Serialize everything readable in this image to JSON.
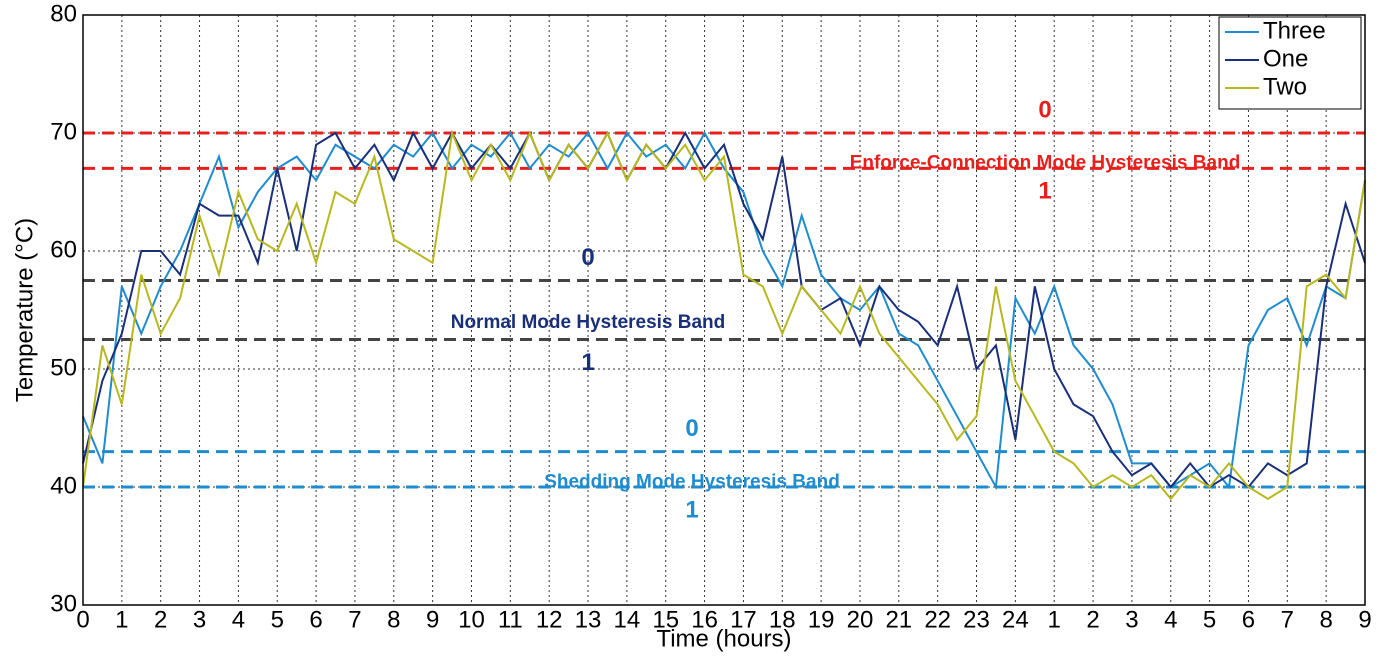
{
  "chart_data": {
    "type": "line",
    "xlabel": "Time (hours)",
    "ylabel": "Temperature (°C)",
    "x": [
      0,
      0.5,
      1,
      1.5,
      2,
      2.5,
      3,
      3.5,
      4,
      4.5,
      5,
      5.5,
      6,
      6.5,
      7,
      7.5,
      8,
      8.5,
      9,
      9.5,
      10,
      10.5,
      11,
      11.5,
      12,
      12.5,
      13,
      13.5,
      14,
      14.5,
      15,
      15.5,
      16,
      16.5,
      17,
      17.5,
      18,
      18.5,
      19,
      19.5,
      20,
      20.5,
      21,
      21.5,
      22,
      22.5,
      23,
      23.5,
      24,
      24.5,
      25,
      25.5,
      26,
      26.5,
      27,
      27.5,
      28,
      28.5,
      29,
      29.5,
      30,
      30.5,
      31,
      31.5,
      32,
      32.5,
      33
    ],
    "series": [
      {
        "name": "Three",
        "color": "#1e8ccf",
        "values": [
          46,
          42,
          57,
          53,
          57,
          60,
          64,
          68,
          62,
          65,
          67,
          68,
          66,
          69,
          68,
          67,
          69,
          68,
          70,
          67,
          69,
          68,
          70,
          67,
          69,
          68,
          70,
          67,
          70,
          68,
          69,
          67,
          70,
          67,
          65,
          60,
          57,
          63,
          58,
          56,
          55,
          57,
          53,
          52,
          49,
          46,
          43,
          40,
          56,
          53,
          57,
          52,
          50,
          47,
          42,
          42,
          40,
          41,
          42,
          40,
          52,
          55,
          56,
          52,
          57,
          56,
          66
        ]
      },
      {
        "name": "One",
        "color": "#1a2f7a",
        "values": [
          42,
          49,
          53,
          60,
          60,
          58,
          64,
          63,
          63,
          59,
          67,
          60,
          69,
          70,
          67,
          69,
          66,
          70,
          67,
          70,
          67,
          69,
          67,
          70,
          66,
          69,
          67,
          70,
          66,
          69,
          67,
          70,
          67,
          69,
          64,
          61,
          68,
          57,
          55,
          56,
          52,
          57,
          55,
          54,
          52,
          57,
          50,
          52,
          44,
          57,
          50,
          47,
          46,
          43,
          41,
          42,
          40,
          42,
          40,
          41,
          40,
          42,
          41,
          42,
          57,
          64,
          59
        ]
      },
      {
        "name": "Two",
        "color": "#b8b81e",
        "values": [
          40,
          52,
          47,
          58,
          53,
          56,
          63,
          58,
          65,
          61,
          60,
          64,
          59,
          65,
          64,
          68,
          61,
          60,
          59,
          70,
          66,
          69,
          66,
          70,
          66,
          69,
          67,
          70,
          66,
          69,
          67,
          69,
          66,
          68,
          58,
          57,
          53,
          57,
          55,
          53,
          57,
          53,
          51,
          49,
          47,
          44,
          46,
          57,
          49,
          46,
          43,
          42,
          40,
          41,
          40,
          41,
          39,
          41,
          40,
          42,
          40,
          39,
          40,
          57,
          58,
          56,
          66
        ]
      }
    ],
    "bands": [
      {
        "name": "Enforce-Connection Mode Hysteresis Band",
        "upper": 70,
        "lower": 67,
        "upper_label": "0",
        "lower_label": "1",
        "color": "#e8201c",
        "line_color": "#e8201c"
      },
      {
        "name": "Normal Mode Hysteresis Band",
        "upper": 57.5,
        "lower": 52.5,
        "upper_label": "0",
        "lower_label": "1",
        "color": "#1a2f7a",
        "line_color": "#444444"
      },
      {
        "name": "Shedding Mode Hysteresis Band",
        "upper": 43,
        "lower": 40,
        "upper_label": "0",
        "lower_label": "1",
        "color": "#1e8ccf",
        "line_color": "#1e8ccf"
      }
    ],
    "xlim": [
      0,
      33
    ],
    "ylim": [
      30,
      80
    ],
    "xticks": [
      0,
      1,
      2,
      3,
      4,
      5,
      6,
      7,
      8,
      9,
      10,
      11,
      12,
      13,
      14,
      15,
      16,
      17,
      18,
      19,
      20,
      21,
      22,
      23,
      24,
      {
        "value": 25,
        "label": "1"
      },
      {
        "value": 26,
        "label": "2"
      },
      {
        "value": 27,
        "label": "3"
      },
      {
        "value": 28,
        "label": "4"
      },
      {
        "value": 29,
        "label": "5"
      },
      {
        "value": 30,
        "label": "6"
      },
      {
        "value": 31,
        "label": "7"
      },
      {
        "value": 32,
        "label": "8"
      },
      {
        "value": 33,
        "label": "9"
      }
    ],
    "yticks": [
      30,
      40,
      50,
      60,
      70,
      80
    ],
    "grid": true,
    "legend": "upper right"
  }
}
